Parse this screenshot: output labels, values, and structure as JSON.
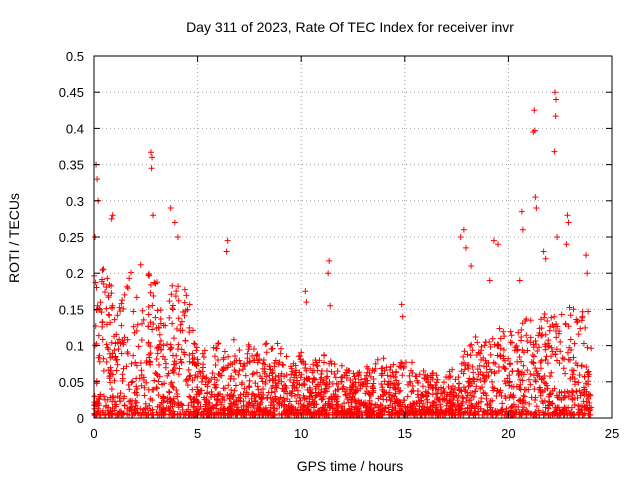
{
  "chart_data": {
    "type": "scatter",
    "title": "Day 311 of 2023, Rate Of TEC Index for receiver invr",
    "xlabel": "GPS time / hours",
    "ylabel": "ROTI / TECUs",
    "xlim": [
      0,
      25
    ],
    "ylim": [
      0,
      0.5
    ],
    "xticks": [
      0,
      5,
      10,
      15,
      20,
      25
    ],
    "xtick_labels": [
      "0",
      "5",
      "10",
      "15",
      "20",
      "25"
    ],
    "yticks": [
      0,
      0.05,
      0.1,
      0.15,
      0.2,
      0.25,
      0.3,
      0.35,
      0.4,
      0.45,
      0.5
    ],
    "ytick_labels": [
      "0",
      "0.05",
      "0.1",
      "0.15",
      "0.2",
      "0.25",
      "0.3",
      "0.35",
      "0.4",
      "0.45",
      "0.5"
    ],
    "grid": true,
    "marker": "+",
    "color": "#ff0000",
    "series": [
      {
        "name": "ROTI",
        "density_envelope": {
          "x": [
            0,
            0.5,
            1,
            1.5,
            2,
            2.5,
            3,
            3.5,
            4,
            4.5,
            5,
            5.5,
            6,
            6.5,
            7,
            7.5,
            8,
            8.5,
            9,
            9.5,
            10,
            10.5,
            11,
            11.5,
            12,
            12.5,
            13,
            13.5,
            14,
            14.5,
            15,
            15.5,
            16,
            16.5,
            17,
            17.5,
            18,
            18.5,
            19,
            19.5,
            20,
            20.5,
            21,
            21.5,
            22,
            22.5,
            23,
            23.5,
            24
          ],
          "upper": [
            0.22,
            0.2,
            0.18,
            0.2,
            0.22,
            0.2,
            0.19,
            0.17,
            0.2,
            0.17,
            0.1,
            0.09,
            0.1,
            0.1,
            0.11,
            0.1,
            0.1,
            0.1,
            0.11,
            0.08,
            0.09,
            0.07,
            0.09,
            0.08,
            0.07,
            0.06,
            0.06,
            0.08,
            0.08,
            0.07,
            0.08,
            0.07,
            0.06,
            0.06,
            0.06,
            0.07,
            0.1,
            0.11,
            0.1,
            0.12,
            0.12,
            0.12,
            0.14,
            0.13,
            0.15,
            0.14,
            0.16,
            0.16,
            0.14
          ]
        },
        "spikes": [
          {
            "x": 0.1,
            "y": 0.35
          },
          {
            "x": 0.15,
            "y": 0.33
          },
          {
            "x": 0.2,
            "y": 0.3
          },
          {
            "x": 0.05,
            "y": 0.25
          },
          {
            "x": 0.9,
            "y": 0.28
          },
          {
            "x": 0.85,
            "y": 0.275
          },
          {
            "x": 2.75,
            "y": 0.367
          },
          {
            "x": 2.8,
            "y": 0.36
          },
          {
            "x": 2.78,
            "y": 0.345
          },
          {
            "x": 2.85,
            "y": 0.28
          },
          {
            "x": 3.7,
            "y": 0.29
          },
          {
            "x": 3.9,
            "y": 0.27
          },
          {
            "x": 4.05,
            "y": 0.25
          },
          {
            "x": 6.45,
            "y": 0.245
          },
          {
            "x": 6.4,
            "y": 0.23
          },
          {
            "x": 11.35,
            "y": 0.217
          },
          {
            "x": 11.3,
            "y": 0.2
          },
          {
            "x": 11.4,
            "y": 0.155
          },
          {
            "x": 10.2,
            "y": 0.175
          },
          {
            "x": 10.25,
            "y": 0.16
          },
          {
            "x": 14.85,
            "y": 0.157
          },
          {
            "x": 14.9,
            "y": 0.14
          },
          {
            "x": 17.7,
            "y": 0.25
          },
          {
            "x": 17.85,
            "y": 0.26
          },
          {
            "x": 17.95,
            "y": 0.235
          },
          {
            "x": 18.2,
            "y": 0.21
          },
          {
            "x": 19.3,
            "y": 0.245
          },
          {
            "x": 19.5,
            "y": 0.24
          },
          {
            "x": 19.1,
            "y": 0.19
          },
          {
            "x": 20.65,
            "y": 0.285
          },
          {
            "x": 20.7,
            "y": 0.26
          },
          {
            "x": 20.55,
            "y": 0.19
          },
          {
            "x": 21.25,
            "y": 0.425
          },
          {
            "x": 21.28,
            "y": 0.397
          },
          {
            "x": 21.2,
            "y": 0.395
          },
          {
            "x": 21.3,
            "y": 0.305
          },
          {
            "x": 21.35,
            "y": 0.29
          },
          {
            "x": 22.25,
            "y": 0.45
          },
          {
            "x": 22.3,
            "y": 0.44
          },
          {
            "x": 22.28,
            "y": 0.417
          },
          {
            "x": 22.22,
            "y": 0.368
          },
          {
            "x": 22.35,
            "y": 0.25
          },
          {
            "x": 21.7,
            "y": 0.23
          },
          {
            "x": 21.8,
            "y": 0.22
          },
          {
            "x": 22.85,
            "y": 0.28
          },
          {
            "x": 22.9,
            "y": 0.27
          },
          {
            "x": 22.8,
            "y": 0.24
          },
          {
            "x": 23.75,
            "y": 0.225
          },
          {
            "x": 23.8,
            "y": 0.2
          }
        ]
      }
    ]
  }
}
